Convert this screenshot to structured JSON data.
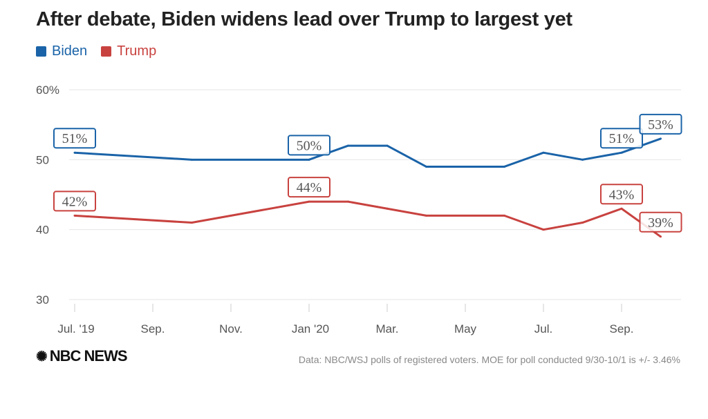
{
  "chart_data": {
    "type": "line",
    "title": "After debate, Biden widens lead over Trump to largest yet",
    "xlabel": "",
    "ylabel": "",
    "ylim": [
      30,
      60
    ],
    "yticks": [
      {
        "value": 60,
        "label": "60%"
      },
      {
        "value": 50,
        "label": "50"
      },
      {
        "value": 40,
        "label": "40"
      },
      {
        "value": 30,
        "label": "30"
      }
    ],
    "xticks": [
      {
        "date": "2019-07",
        "label": "Jul. '19"
      },
      {
        "date": "2019-09",
        "label": "Sep."
      },
      {
        "date": "2019-11",
        "label": "Nov."
      },
      {
        "date": "2020-01",
        "label": "Jan '20"
      },
      {
        "date": "2020-03",
        "label": "Mar."
      },
      {
        "date": "2020-05",
        "label": "May"
      },
      {
        "date": "2020-07",
        "label": "Jul."
      },
      {
        "date": "2020-09",
        "label": "Sep."
      }
    ],
    "x": [
      "2019-07",
      "2019-10",
      "2020-01",
      "2020-02",
      "2020-03",
      "2020-04",
      "2020-06",
      "2020-07",
      "2020-08",
      "2020-09",
      "2020-10"
    ],
    "grid": true,
    "legend": "top-left",
    "series": [
      {
        "name": "Biden",
        "color": "#1a63a8",
        "values": [
          51,
          50,
          50,
          52,
          52,
          49,
          49,
          51,
          50,
          51,
          53
        ],
        "labels": [
          {
            "index": 0,
            "text": "51%"
          },
          {
            "index": 2,
            "text": "50%"
          },
          {
            "index": 9,
            "text": "51%"
          },
          {
            "index": 10,
            "text": "53%"
          }
        ]
      },
      {
        "name": "Trump",
        "color": "#c8423f",
        "values": [
          42,
          41,
          44,
          44,
          43,
          42,
          42,
          40,
          41,
          43,
          39
        ],
        "labels": [
          {
            "index": 0,
            "text": "42%"
          },
          {
            "index": 2,
            "text": "44%"
          },
          {
            "index": 9,
            "text": "43%"
          },
          {
            "index": 10,
            "text": "39%"
          }
        ]
      }
    ]
  },
  "footer": {
    "logo": "NBC NEWS",
    "source": "Data: NBC/WSJ polls of registered voters. MOE for poll conducted 9/30-10/1 is +/- 3.46%"
  }
}
